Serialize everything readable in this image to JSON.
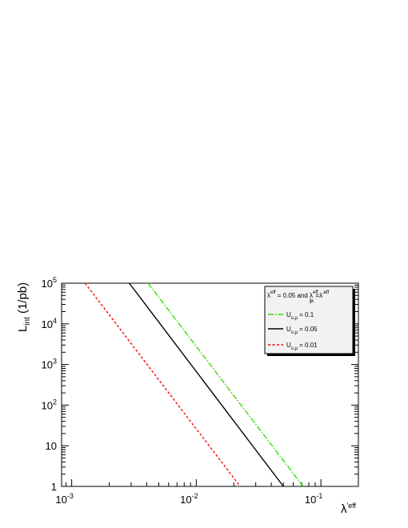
{
  "chart_data": {
    "type": "line",
    "title": "",
    "xlabel": "λ'eff",
    "ylabel": "L_int (1/pb)",
    "x_scale": "log",
    "y_scale": "log",
    "xlim": [
      0.00083,
      0.2
    ],
    "ylim": [
      1,
      100000
    ],
    "x_ticks": [
      {
        "value": 0.001,
        "base": "10",
        "exp": "-3"
      },
      {
        "value": 0.01,
        "base": "10",
        "exp": "-2"
      },
      {
        "value": 0.1,
        "base": "10",
        "exp": "-1"
      }
    ],
    "y_ticks": [
      {
        "value": 1,
        "base": "1",
        "exp": ""
      },
      {
        "value": 10,
        "base": "10",
        "exp": ""
      },
      {
        "value": 100,
        "base": "10",
        "exp": "2"
      },
      {
        "value": 1000,
        "base": "10",
        "exp": "3"
      },
      {
        "value": 10000,
        "base": "10",
        "exp": "4"
      },
      {
        "value": 100000,
        "base": "10",
        "exp": "5"
      }
    ],
    "grid": false,
    "legend_position": "top-right",
    "legend_header": {
      "lambda": "λ",
      "lambda_sup": "eff",
      "text1": " = 0.05 and ",
      "lambda2_sup": "eff",
      "lambda2_sub": "ijk",
      "text2": " =λ'",
      "lambda3_sup": "eff"
    },
    "series": [
      {
        "name": "U_{ν,μ} = 0.1",
        "label_main": "U",
        "label_sub": "ν,μ",
        "label_rest": " = 0.1",
        "color": "#33dd00",
        "dash": "7,2,1.5,2",
        "points": [
          [
            0.0041,
            100000
          ],
          [
            0.072,
            1
          ]
        ]
      },
      {
        "name": "U_{ν,μ} = 0.05",
        "label_main": "U",
        "label_sub": "ν,μ",
        "label_rest": " = 0.05",
        "color": "#000000",
        "dash": "",
        "points": [
          [
            0.0029,
            100000
          ],
          [
            0.05,
            1
          ]
        ]
      },
      {
        "name": "U_{ν,μ} = 0.01",
        "label_main": "U",
        "label_sub": "ν,μ",
        "label_rest": " = 0.01",
        "color": "#ff0000",
        "dash": "3,2.5",
        "points": [
          [
            0.00128,
            100000
          ],
          [
            0.0225,
            1
          ]
        ]
      }
    ]
  }
}
